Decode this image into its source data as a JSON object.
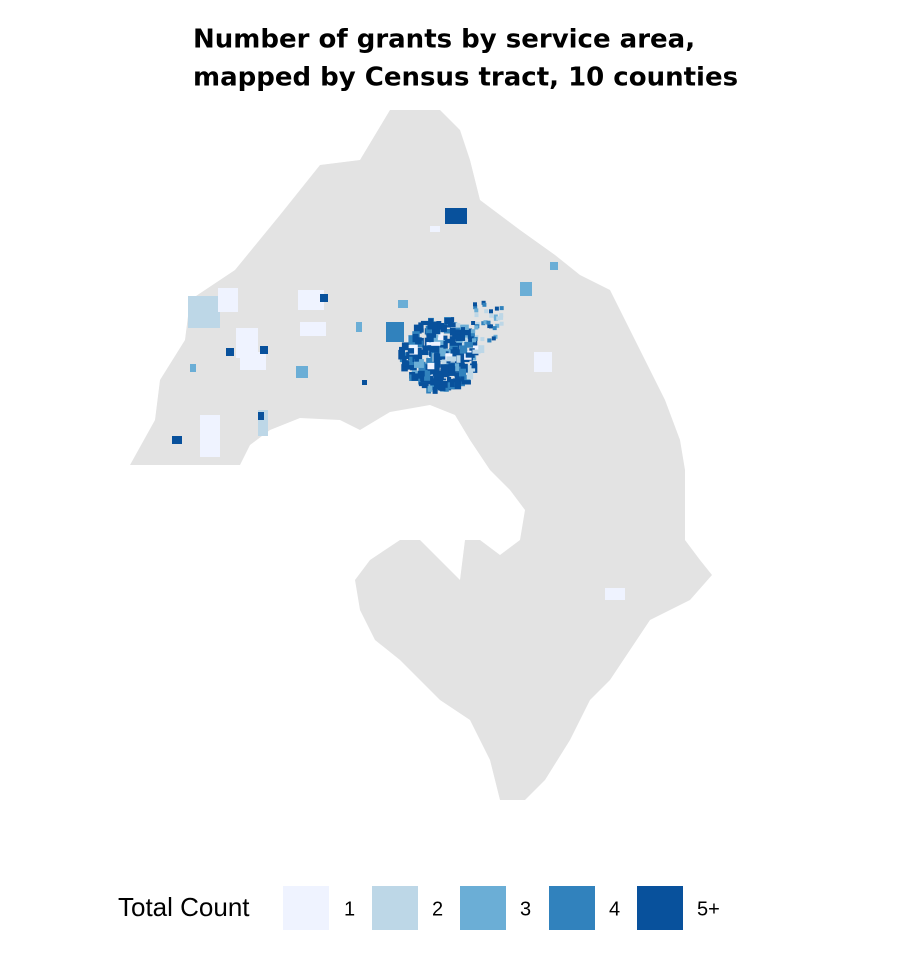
{
  "title": [
    "Number of grants by service area,",
    "mapped by Census tract, 10 counties"
  ],
  "base_color": "#e3e3e3",
  "legend": {
    "title": "Total Count",
    "items": [
      {
        "label": "1",
        "color": "#eff3ff"
      },
      {
        "label": "2",
        "color": "#bdd7e7"
      },
      {
        "label": "3",
        "color": "#6baed6"
      },
      {
        "label": "4",
        "color": "#3182bd"
      },
      {
        "label": "5+",
        "color": "#08519c"
      }
    ]
  }
}
